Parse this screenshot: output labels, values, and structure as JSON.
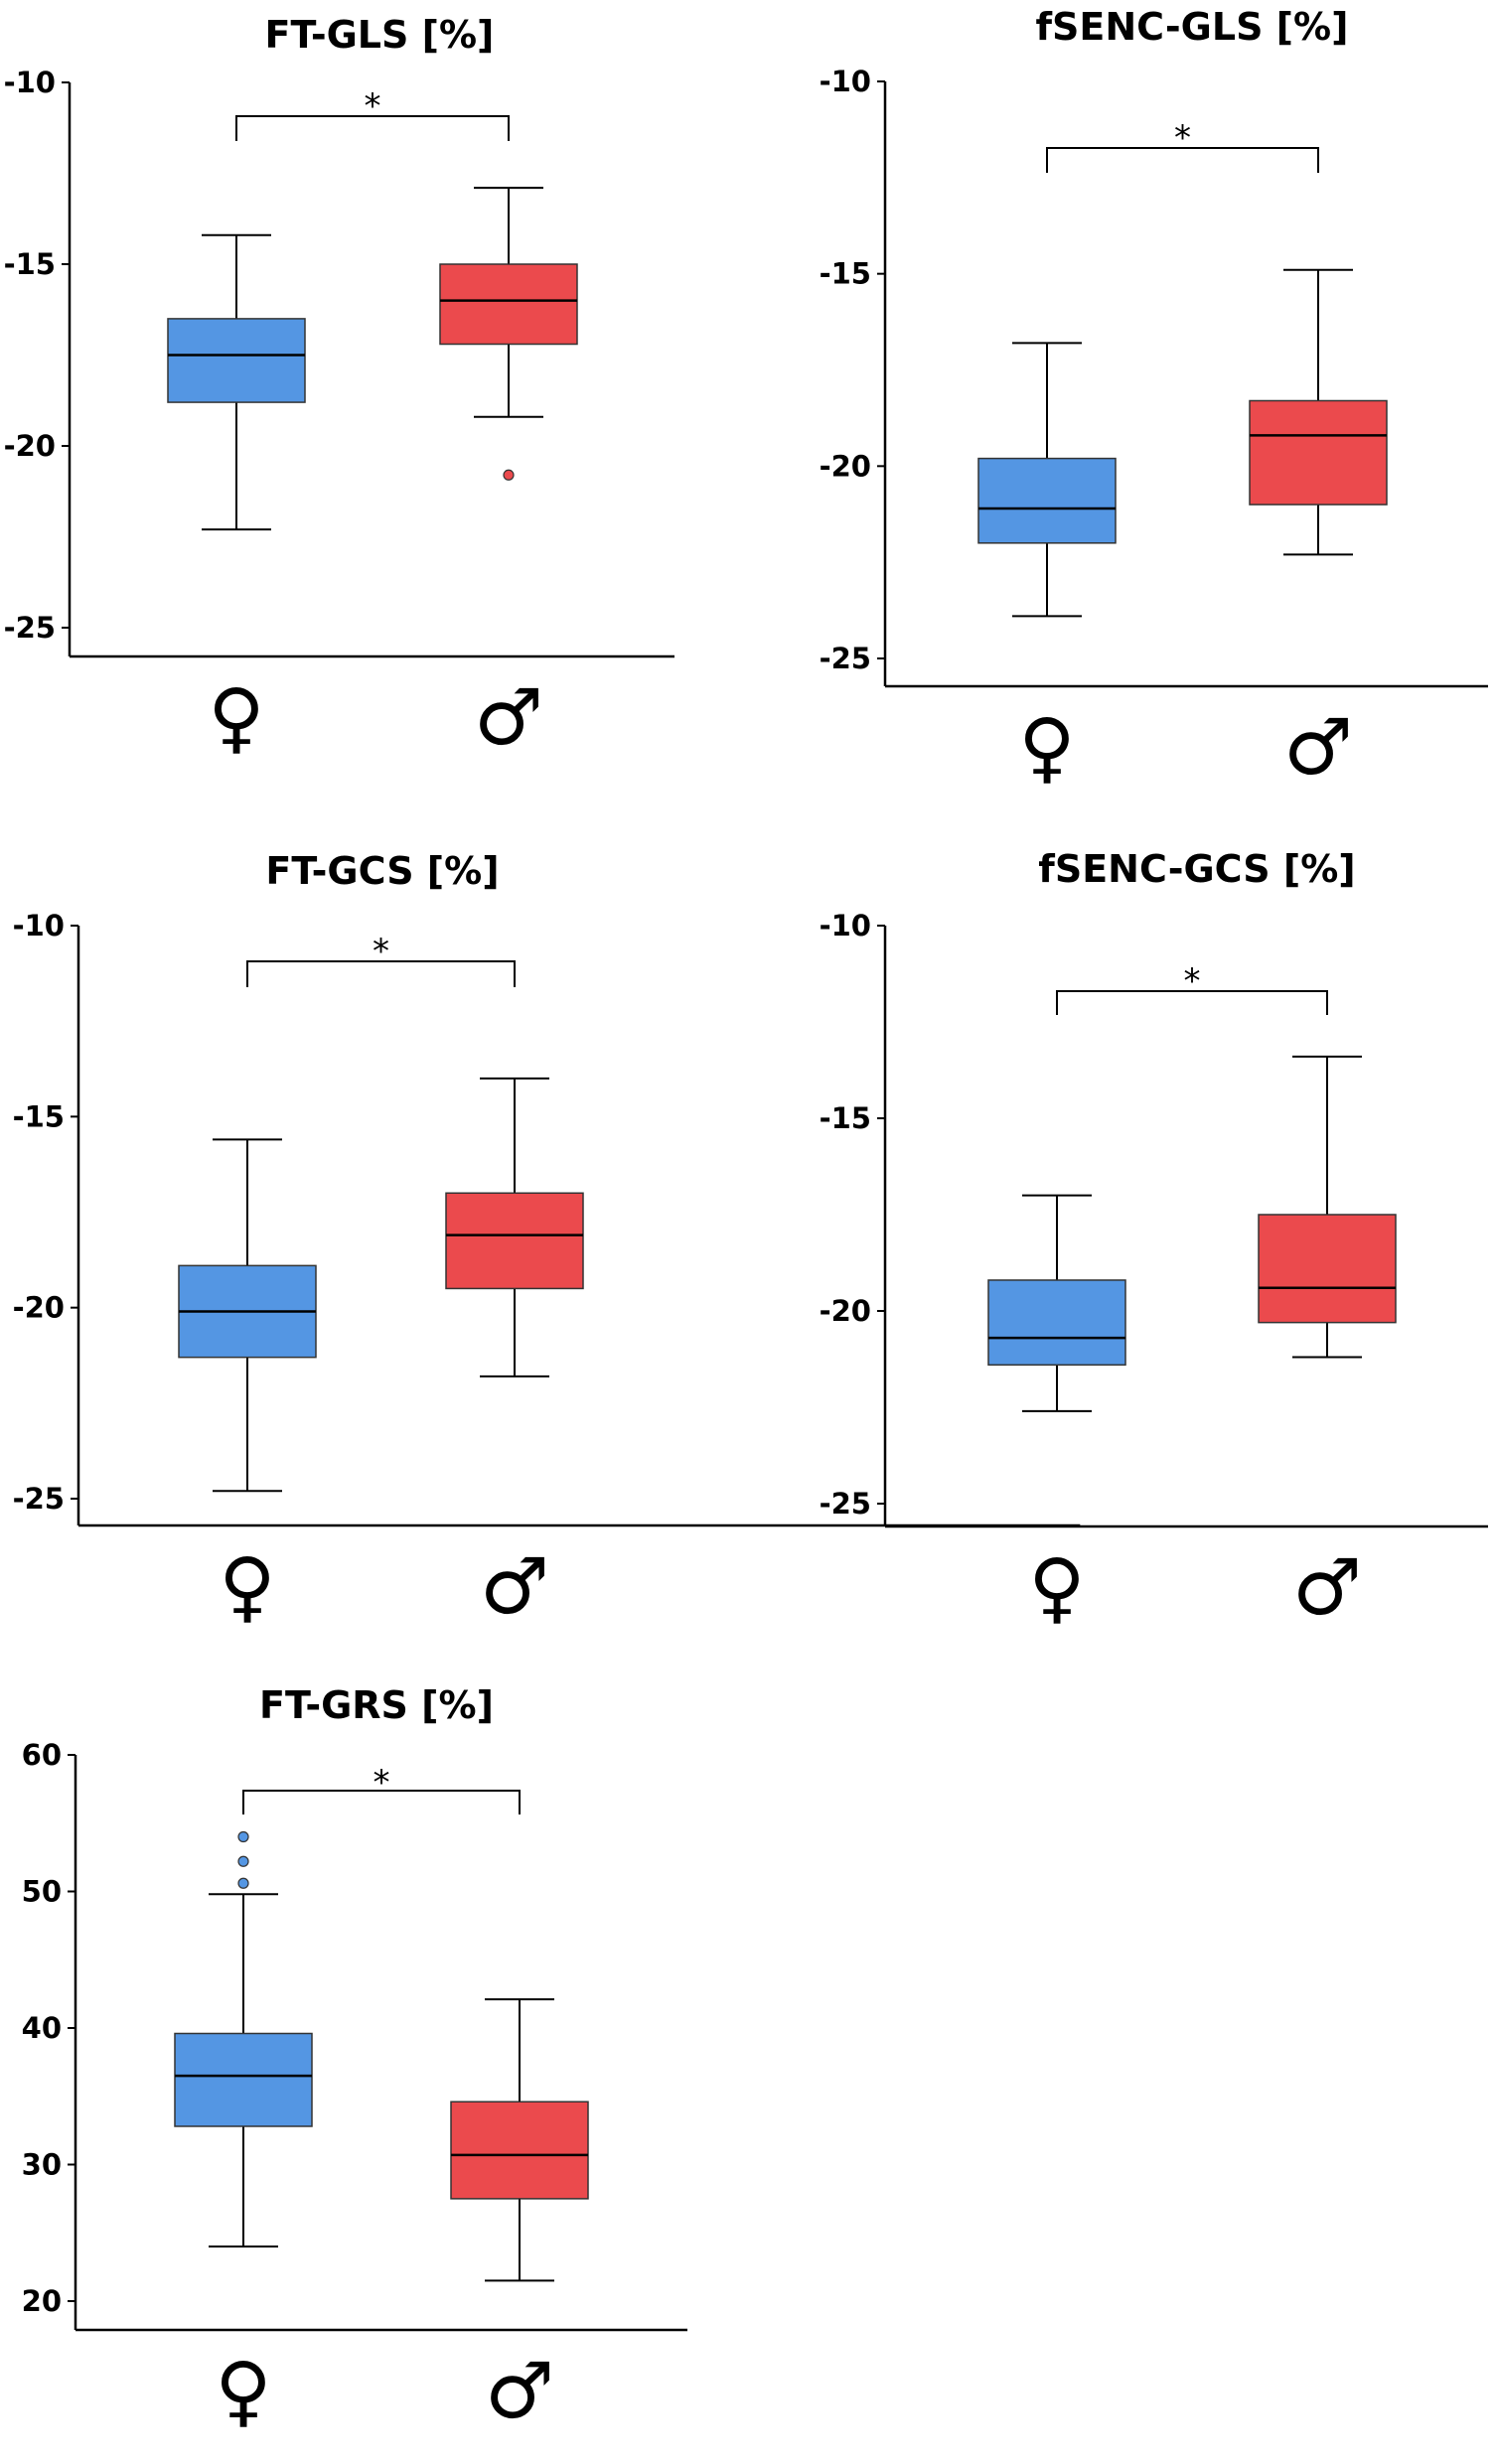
{
  "colors": {
    "female": "#5496e3",
    "male": "#eb4a4d"
  },
  "chart_data": [
    {
      "type": "box",
      "title": "FT-GLS [%]",
      "ylim": [
        -25.5,
        -10
      ],
      "yticks": [
        -10,
        -15,
        -20,
        -25
      ],
      "categories": [
        "♀",
        "♂"
      ],
      "significance": "*",
      "boxes": [
        {
          "group": "female",
          "whisker_high": -14.2,
          "q3": -16.5,
          "median": -17.5,
          "q1": -18.8,
          "whisker_low": -22.3,
          "outliers": []
        },
        {
          "group": "male",
          "whisker_high": -12.9,
          "q3": -15.0,
          "median": -16.0,
          "q1": -17.2,
          "whisker_low": -19.2,
          "outliers": [
            -20.8
          ]
        }
      ]
    },
    {
      "type": "box",
      "title": "fSENC-GLS [%]",
      "ylim": [
        -25.5,
        -10
      ],
      "yticks": [
        -10,
        -15,
        -20,
        -25
      ],
      "categories": [
        "♀",
        "♂"
      ],
      "significance": "*",
      "boxes": [
        {
          "group": "female",
          "whisker_high": -16.8,
          "q3": -19.8,
          "median": -21.1,
          "q1": -22.0,
          "whisker_low": -23.9,
          "outliers": []
        },
        {
          "group": "male",
          "whisker_high": -14.9,
          "q3": -18.3,
          "median": -19.2,
          "q1": -21.0,
          "whisker_low": -22.3,
          "outliers": []
        }
      ]
    },
    {
      "type": "box",
      "title": "FT-GCS [%]",
      "ylim": [
        -25.5,
        -10
      ],
      "yticks": [
        -10,
        -15,
        -20,
        -25
      ],
      "categories": [
        "♀",
        "♂"
      ],
      "significance": "*",
      "boxes": [
        {
          "group": "female",
          "whisker_high": -15.6,
          "q3": -18.9,
          "median": -20.1,
          "q1": -21.3,
          "whisker_low": -24.8,
          "outliers": []
        },
        {
          "group": "male",
          "whisker_high": -14.0,
          "q3": -17.0,
          "median": -18.1,
          "q1": -19.5,
          "whisker_low": -21.8,
          "outliers": []
        }
      ]
    },
    {
      "type": "box",
      "title": "fSENC-GCS [%]",
      "ylim": [
        -25.5,
        -10
      ],
      "yticks": [
        -10,
        -15,
        -20,
        -25
      ],
      "categories": [
        "♀",
        "♂"
      ],
      "significance": "*",
      "boxes": [
        {
          "group": "female",
          "whisker_high": -17.0,
          "q3": -19.2,
          "median": -20.7,
          "q1": -21.4,
          "whisker_low": -22.6,
          "outliers": []
        },
        {
          "group": "male",
          "whisker_high": -13.4,
          "q3": -17.5,
          "median": -19.4,
          "q1": -20.3,
          "whisker_low": -21.2,
          "outliers": []
        }
      ]
    },
    {
      "type": "box",
      "title": "FT-GRS [%]",
      "ylim": [
        18,
        60
      ],
      "yticks": [
        60,
        50,
        40,
        30,
        20
      ],
      "categories": [
        "♀",
        "♂"
      ],
      "significance": "*",
      "boxes": [
        {
          "group": "female",
          "whisker_high": 49.8,
          "q3": 39.6,
          "median": 36.5,
          "q1": 32.8,
          "whisker_low": 24.0,
          "outliers": [
            50.6,
            52.2,
            54.0
          ]
        },
        {
          "group": "male",
          "whisker_high": 42.1,
          "q3": 34.6,
          "median": 30.7,
          "q1": 27.5,
          "whisker_low": 21.5,
          "outliers": []
        }
      ]
    }
  ]
}
